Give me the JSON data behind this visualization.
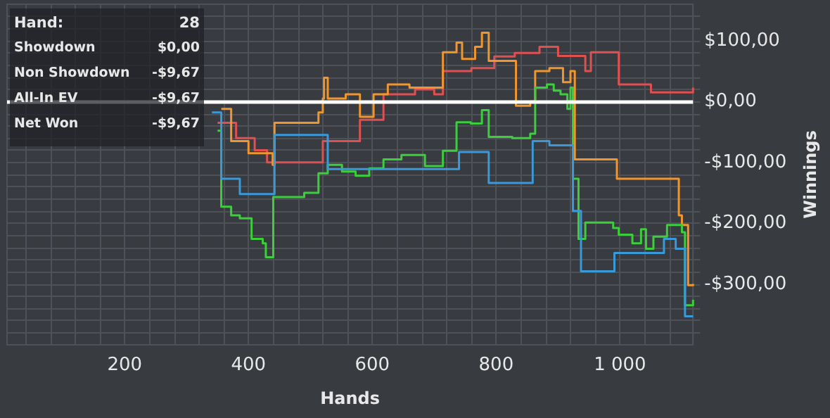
{
  "chart_data": {
    "type": "step",
    "xlabel": "Hands",
    "ylabel": "Winnings",
    "annotations": [
      "Hand:",
      "28",
      "Showdown",
      "$0,00",
      "Non Showdown",
      "-$9,67",
      "All-In EV",
      "-$9,67",
      "Net Won",
      "-$9,67"
    ],
    "xlim": [
      10,
      1118
    ],
    "ylim": [
      -400,
      160
    ],
    "xticks": [
      {
        "value": 40,
        "label": null
      },
      {
        "value": 80,
        "label": null
      },
      {
        "value": 120,
        "label": null
      },
      {
        "value": 160,
        "label": null
      },
      {
        "value": 200,
        "label": "200"
      },
      {
        "value": 240,
        "label": null
      },
      {
        "value": 280,
        "label": null
      },
      {
        "value": 320,
        "label": null
      },
      {
        "value": 360,
        "label": null
      },
      {
        "value": 400,
        "label": "400"
      },
      {
        "value": 440,
        "label": null
      },
      {
        "value": 480,
        "label": null
      },
      {
        "value": 520,
        "label": null
      },
      {
        "value": 560,
        "label": null
      },
      {
        "value": 600,
        "label": "600"
      },
      {
        "value": 640,
        "label": null
      },
      {
        "value": 680,
        "label": null
      },
      {
        "value": 720,
        "label": null
      },
      {
        "value": 760,
        "label": null
      },
      {
        "value": 800,
        "label": "800"
      },
      {
        "value": 840,
        "label": null
      },
      {
        "value": 880,
        "label": null
      },
      {
        "value": 920,
        "label": null
      },
      {
        "value": 960,
        "label": null
      },
      {
        "value": 1000,
        "label": "1 000"
      },
      {
        "value": 1040,
        "label": null
      },
      {
        "value": 1080,
        "label": null
      }
    ],
    "yticks": [
      {
        "value": -380,
        "label": null
      },
      {
        "value": -360,
        "label": null
      },
      {
        "value": -340,
        "label": null
      },
      {
        "value": -320,
        "label": null
      },
      {
        "value": -300,
        "label": "-$300,00"
      },
      {
        "value": -280,
        "label": null
      },
      {
        "value": -260,
        "label": null
      },
      {
        "value": -240,
        "label": null
      },
      {
        "value": -220,
        "label": null
      },
      {
        "value": -200,
        "label": "-$200,00"
      },
      {
        "value": -180,
        "label": null
      },
      {
        "value": -160,
        "label": null
      },
      {
        "value": -140,
        "label": null
      },
      {
        "value": -120,
        "label": null
      },
      {
        "value": -100,
        "label": "-$100,00"
      },
      {
        "value": -80,
        "label": null
      },
      {
        "value": -60,
        "label": null
      },
      {
        "value": -40,
        "label": null
      },
      {
        "value": -20,
        "label": null
      },
      {
        "value": 0,
        "label": "$0,00"
      },
      {
        "value": 20,
        "label": null
      },
      {
        "value": 40,
        "label": null
      },
      {
        "value": 60,
        "label": null
      },
      {
        "value": 80,
        "label": null
      },
      {
        "value": 100,
        "label": "$100,00"
      },
      {
        "value": 120,
        "label": null
      },
      {
        "value": 140,
        "label": null
      }
    ],
    "grid": true,
    "ref_lines": [
      {
        "axis": "y",
        "value": 0,
        "label": null,
        "color": "#ffffff"
      }
    ],
    "series": [
      {
        "color": "#e05050",
        "x": [
          350,
          380,
          410,
          430,
          490,
          520,
          580,
          618,
          669,
          700,
          714,
          760,
          797,
          830,
          870,
          900,
          944,
          953,
          989,
          998,
          1050,
          1118
        ],
        "values": [
          -35,
          -60,
          -80,
          -100,
          -100,
          -65,
          -30,
          12,
          20,
          12,
          50,
          55,
          74,
          80,
          90,
          75,
          50,
          81,
          81,
          28,
          15,
          23
        ]
      },
      {
        "color": "#f0962e",
        "x": [
          356,
          372,
          400,
          439,
          442,
          490,
          513,
          520,
          522,
          528,
          557,
          580,
          602,
          625,
          660,
          714,
          736,
          745,
          766,
          777,
          788,
          832,
          855,
          863,
          886,
          908,
          920,
          927,
          989,
          995,
          1087,
          1095,
          1100,
          1110,
          1118
        ],
        "values": [
          -12,
          -65,
          -85,
          -104,
          -35,
          -35,
          -18,
          5,
          39,
          5,
          12,
          -25,
          12,
          28,
          23,
          81,
          97,
          70,
          90,
          113,
          67,
          -7,
          0,
          50,
          55,
          32,
          50,
          -95,
          -95,
          -127,
          -127,
          -187,
          -203,
          -302,
          -300
        ]
      },
      {
        "color": "#3ccf3c",
        "x": [
          350,
          356,
          372,
          386,
          405,
          423,
          428,
          440,
          490,
          513,
          528,
          551,
          573,
          595,
          618,
          647,
          685,
          714,
          736,
          759,
          777,
          788,
          826,
          855,
          863,
          882,
          893,
          904,
          915,
          920,
          924,
          933,
          944,
          989,
          998,
          1020,
          1034,
          1042,
          1054,
          1076,
          1100,
          1105,
          1118
        ],
        "values": [
          -48,
          -173,
          -187,
          -192,
          -226,
          -233,
          -256,
          -157,
          -150,
          -118,
          -104,
          -115,
          -122,
          -110,
          -95,
          -88,
          -106,
          -81,
          -34,
          -36,
          -14,
          -58,
          -60,
          -53,
          23,
          28,
          18,
          12,
          -12,
          23,
          -127,
          -226,
          -199,
          -208,
          -219,
          -233,
          -210,
          -242,
          -222,
          -203,
          -215,
          -335,
          -326
        ]
      },
      {
        "color": "#3a9ad9",
        "x": [
          341,
          356,
          386,
          442,
          528,
          740,
          788,
          859,
          886,
          920,
          924,
          933,
          937,
          991,
          1071,
          1090,
          1105,
          1118
        ],
        "values": [
          -18,
          -127,
          -152,
          -55,
          -111,
          -83,
          -134,
          -65,
          -72,
          -72,
          -180,
          -180,
          -279,
          -249,
          -226,
          -242,
          -353,
          -353
        ]
      }
    ]
  }
}
